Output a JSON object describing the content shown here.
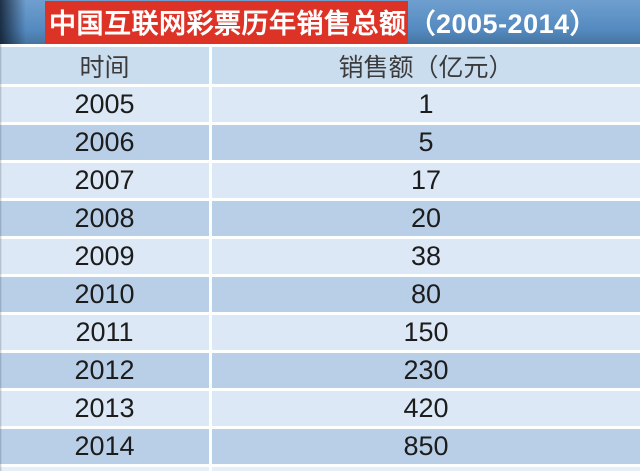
{
  "colors": {
    "banner_red": "#dd3226",
    "bar_blue": "#5389bf",
    "bar_blue_top": "#6f9fcf",
    "header_bg": "#c9ddef",
    "row_light": "#dce8f5",
    "row_dark": "#b9cfe8"
  },
  "title": {
    "main": "中国互联网彩票历年销售总额",
    "range": "（2005-2014）"
  },
  "table": {
    "headers": {
      "time": "时间",
      "sales": "销售额（亿元）"
    },
    "rows": [
      {
        "year": "2005",
        "value": "1"
      },
      {
        "year": "2006",
        "value": "5"
      },
      {
        "year": "2007",
        "value": "17"
      },
      {
        "year": "2008",
        "value": "20"
      },
      {
        "year": "2009",
        "value": "38"
      },
      {
        "year": "2010",
        "value": "80"
      },
      {
        "year": "2011",
        "value": "150"
      },
      {
        "year": "2012",
        "value": "230"
      },
      {
        "year": "2013",
        "value": "420"
      },
      {
        "year": "2014",
        "value": "850"
      }
    ]
  },
  "chart_data": {
    "type": "table",
    "title": "中国互联网彩票历年销售总额（2005-2014）",
    "columns": [
      "时间",
      "销售额（亿元）"
    ],
    "categories": [
      "2005",
      "2006",
      "2007",
      "2008",
      "2009",
      "2010",
      "2011",
      "2012",
      "2013",
      "2014"
    ],
    "values": [
      1,
      5,
      17,
      20,
      38,
      80,
      150,
      230,
      420,
      850
    ],
    "ylabel": "销售额（亿元）",
    "xlabel": "时间"
  }
}
